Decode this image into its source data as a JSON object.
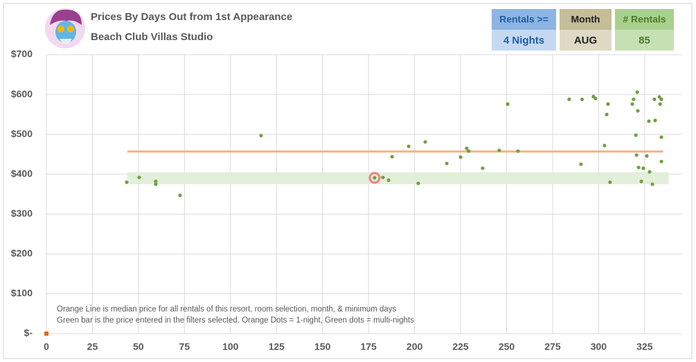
{
  "chart_data": {
    "type": "scatter",
    "title": "Prices By Days Out from 1st Appearance",
    "subtitle": "Beach Club Villas Studio",
    "filters": [
      {
        "label": "Rentals >=",
        "value": "4 Nights",
        "head": "#8db4e2",
        "body": "#c5d9f1",
        "text": "#1f5fa8"
      },
      {
        "label": "Month",
        "value": "AUG",
        "head": "#c4bd97",
        "body": "#ddd9c4",
        "text": "#222222"
      },
      {
        "label": "# Rentals",
        "value": 85,
        "head": "#a9d08e",
        "body": "#c6e0b4",
        "text": "#4f7a28"
      }
    ],
    "annotations": [
      "Orange Line is median price for all rentals of this resort, room selection, month, & minimum days",
      "Green bar is the price entered in the filters selected. Orange Dots = 1-night, Green dots = multi-nights"
    ],
    "xlim": [
      0,
      345
    ],
    "xticks": [
      0,
      25,
      50,
      75,
      100,
      125,
      150,
      175,
      200,
      225,
      250,
      275,
      300,
      325
    ],
    "ylim": [
      0,
      700
    ],
    "yticks": [
      {
        "value": 0,
        "label": "$-"
      },
      {
        "value": 100,
        "label": "$100"
      },
      {
        "value": 200,
        "label": "$200"
      },
      {
        "value": 300,
        "label": "$300"
      },
      {
        "value": 400,
        "label": "$400"
      },
      {
        "value": 500,
        "label": "$500"
      },
      {
        "value": 600,
        "label": "$600"
      },
      {
        "value": 700,
        "label": "$700"
      }
    ],
    "grid": true,
    "median_line": {
      "value": 457,
      "x": [
        44,
        335
      ],
      "color": "#f4b183"
    },
    "price_band": {
      "values": [
        375,
        405
      ],
      "x": [
        44,
        338
      ],
      "color": "#e2efda"
    },
    "highlight": {
      "x": 178.3,
      "value": 391,
      "color": "#f08080"
    },
    "series": [
      {
        "color": "#70a040",
        "x": [
          43.6,
          50.4,
          59.4,
          59.4,
          72.6,
          116.6,
          178.3,
          182.8,
          185.9,
          187.8,
          196.8,
          202,
          205.8,
          217.5,
          225,
          228.3,
          229.4,
          237,
          246,
          250.6,
          256.2,
          284,
          290.4,
          291,
          297.2,
          298.3,
          303.2,
          304.4,
          305.1,
          306.2,
          318.3,
          319,
          320.2,
          320.6,
          321,
          321.3,
          321.7,
          323.2,
          324.3,
          326.2,
          327.3,
          327.7,
          329.2,
          330.3,
          330.7,
          333,
          333.4,
          334.1,
          334.1,
          334.1
        ],
        "values": [
          380,
          392,
          382,
          375,
          347,
          497,
          391,
          392,
          385,
          444,
          470,
          377,
          481,
          427,
          443,
          465,
          458,
          415,
          460,
          576,
          458,
          588,
          425,
          588,
          595,
          590,
          472,
          550,
          576,
          380,
          576,
          588,
          498,
          448,
          606,
          559,
          417,
          382,
          415,
          446,
          533,
          406,
          375,
          588,
          535,
          594,
          576,
          588,
          493,
          432
        ]
      },
      {
        "color": "#e46c0a",
        "x": [
          0
        ],
        "values": [
          0
        ]
      }
    ]
  }
}
